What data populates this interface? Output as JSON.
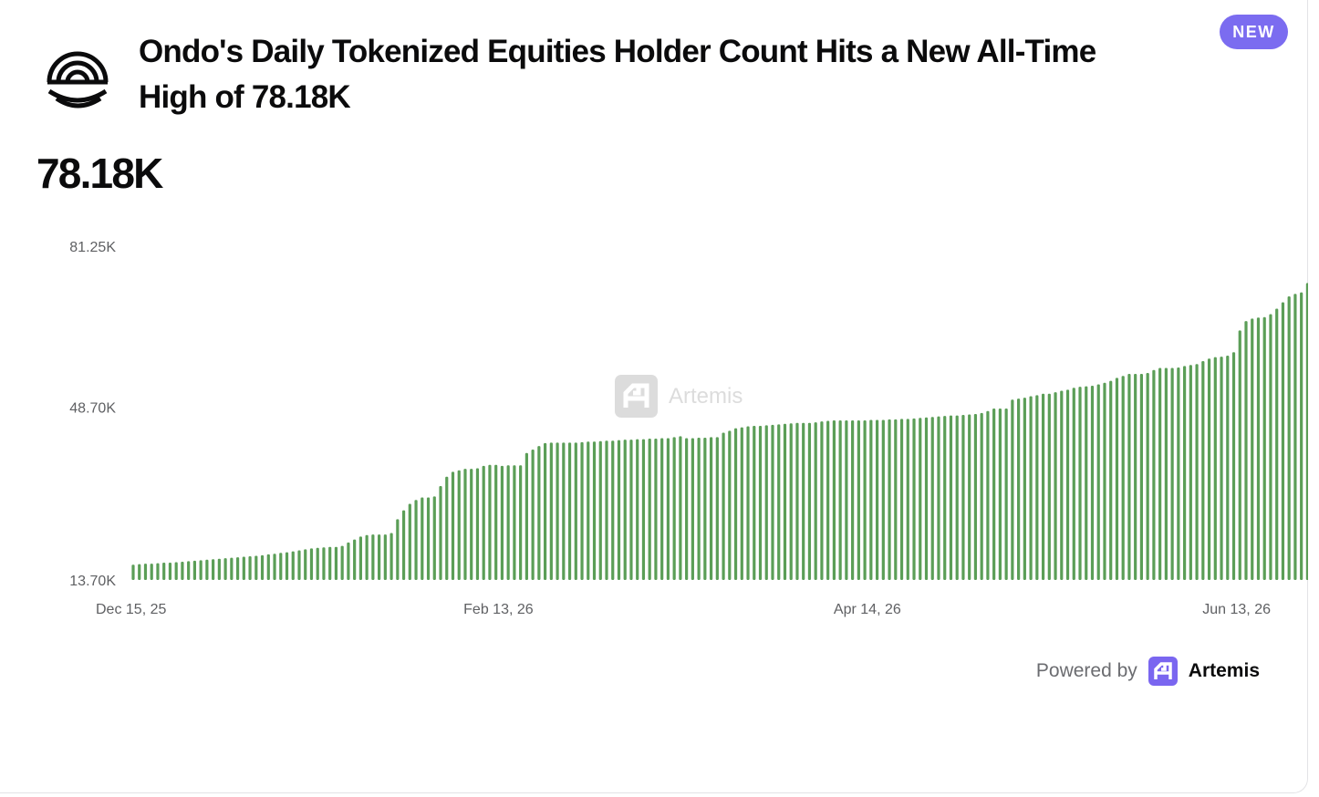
{
  "header": {
    "title": "Ondo's Daily Tokenized Equities Holder Count Hits a New All-Time High of 78.18K",
    "badge": "NEW",
    "logo_icon": "ondo-logo-icon"
  },
  "headline_value": "78.18K",
  "watermark": {
    "text": "Artemis",
    "icon": "artemis-logo-icon"
  },
  "footer": {
    "powered_by": "Powered by",
    "brand": "Artemis",
    "brand_color": "#7a66f0"
  },
  "colors": {
    "bar": "#5b9e57",
    "badge": "#7b6cf0"
  },
  "chart_data": {
    "type": "bar",
    "title": "",
    "xlabel": "",
    "ylabel": "",
    "ylim": [
      13.7,
      81.25
    ],
    "y_unit": "K",
    "y_ticks": [
      "81.25K",
      "48.70K",
      "13.70K"
    ],
    "x_range": [
      "2025-12-15",
      "2026-06-14"
    ],
    "x_ticks": [
      {
        "date": "2025-12-15",
        "label": "Dec 15, 25"
      },
      {
        "date": "2026-02-13",
        "label": "Feb 13, 26"
      },
      {
        "date": "2026-04-14",
        "label": "Apr 14, 26"
      },
      {
        "date": "2026-06-13",
        "label": "Jun 13, 26"
      }
    ],
    "series": [
      {
        "start_date": "2025-12-15",
        "interval": "1 day",
        "values": [
          16.8,
          16.9,
          17.0,
          17.0,
          17.1,
          17.2,
          17.2,
          17.3,
          17.4,
          17.5,
          17.6,
          17.7,
          17.8,
          17.9,
          18.0,
          18.1,
          18.2,
          18.3,
          18.4,
          18.5,
          18.6,
          18.7,
          18.9,
          19.0,
          19.2,
          19.3,
          19.5,
          19.7,
          19.9,
          20.1,
          20.2,
          20.3,
          20.4,
          20.4,
          20.6,
          21.3,
          21.9,
          22.5,
          22.8,
          22.9,
          22.9,
          22.9,
          23.2,
          26.0,
          27.8,
          29.1,
          29.9,
          30.4,
          30.4,
          30.6,
          32.7,
          34.6,
          35.6,
          35.9,
          36.2,
          36.2,
          36.3,
          36.8,
          37.0,
          37.0,
          36.8,
          36.9,
          36.9,
          36.9,
          39.4,
          40.1,
          40.8,
          41.4,
          41.5,
          41.5,
          41.5,
          41.5,
          41.5,
          41.6,
          41.7,
          41.7,
          41.8,
          41.9,
          41.9,
          42.0,
          42.1,
          42.1,
          42.2,
          42.2,
          42.3,
          42.3,
          42.4,
          42.4,
          42.6,
          42.8,
          42.4,
          42.4,
          42.5,
          42.5,
          42.6,
          42.6,
          43.5,
          43.9,
          44.4,
          44.6,
          44.8,
          44.9,
          44.9,
          45.0,
          45.1,
          45.2,
          45.3,
          45.4,
          45.5,
          45.5,
          45.5,
          45.6,
          45.8,
          45.9,
          46.0,
          46.0,
          46.0,
          46.0,
          46.0,
          46.0,
          46.1,
          46.1,
          46.1,
          46.2,
          46.2,
          46.3,
          46.3,
          46.4,
          46.5,
          46.6,
          46.7,
          46.8,
          46.9,
          47.0,
          47.0,
          47.1,
          47.2,
          47.3,
          47.5,
          47.9,
          48.4,
          48.4,
          48.4,
          50.2,
          50.4,
          50.6,
          50.9,
          51.1,
          51.4,
          51.4,
          51.7,
          52.0,
          52.2,
          52.6,
          52.8,
          52.9,
          53.0,
          53.3,
          53.6,
          54.0,
          54.6,
          55.0,
          55.4,
          55.4,
          55.4,
          55.6,
          56.2,
          56.6,
          56.6,
          56.6,
          56.7,
          57.0,
          57.2,
          57.4,
          58.0,
          58.5,
          58.8,
          58.9,
          59.1,
          59.8,
          64.2,
          66.1,
          66.6,
          66.8,
          66.9,
          67.5,
          68.6,
          69.9,
          71.1,
          71.6,
          71.9,
          73.8,
          74.1,
          74.7,
          77.5,
          78.0
        ]
      }
    ]
  }
}
